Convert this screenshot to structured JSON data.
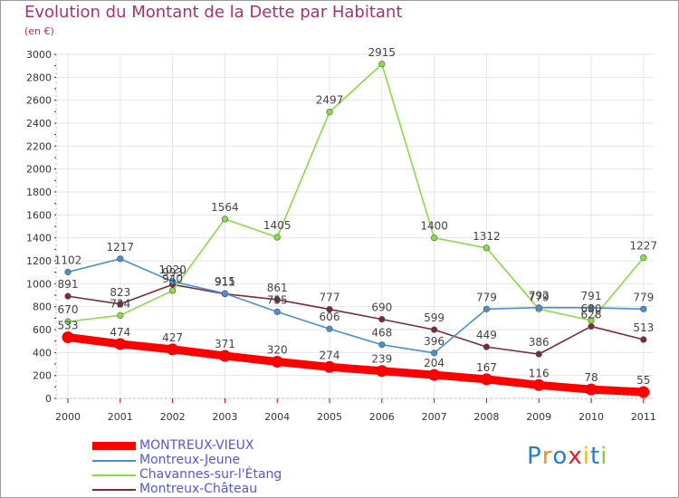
{
  "title": "Evolution du Montant de la Dette par Habitant",
  "subtitle": "(en €)",
  "logo": "Proxiti",
  "chart_data": {
    "type": "line",
    "categories": [
      "2000",
      "2001",
      "2002",
      "2003",
      "2004",
      "2005",
      "2006",
      "2007",
      "2008",
      "2009",
      "2010",
      "2011"
    ],
    "ylim": [
      0,
      3000
    ],
    "yticks": [
      0,
      200,
      400,
      600,
      800,
      1000,
      1200,
      1400,
      1600,
      1800,
      2000,
      2200,
      2400,
      2600,
      2800,
      3000
    ],
    "grid": true,
    "legend_placement": "bottom-left",
    "series": [
      {
        "name": "MONTREUX-VIEUX",
        "color": "#ff0000",
        "values": [
          533,
          474,
          427,
          371,
          320,
          274,
          239,
          204,
          167,
          116,
          78,
          55
        ]
      },
      {
        "name": "Montreux-Jeune",
        "color": "#4a8fd0",
        "values": [
          1102,
          1217,
          1020,
          915,
          755,
          606,
          468,
          396,
          779,
          792,
          791,
          779
        ]
      },
      {
        "name": "Chavannes-sur-l'Étang",
        "color": "#88dd44",
        "values": [
          670,
          724,
          940,
          1564,
          1405,
          2497,
          2915,
          1400,
          1312,
          779,
          680,
          1227
        ]
      },
      {
        "name": "Montreux-Château",
        "color": "#7a2a3a",
        "values": [
          891,
          823,
          993,
          911,
          861,
          777,
          690,
          599,
          449,
          386,
          628,
          513
        ]
      }
    ]
  }
}
